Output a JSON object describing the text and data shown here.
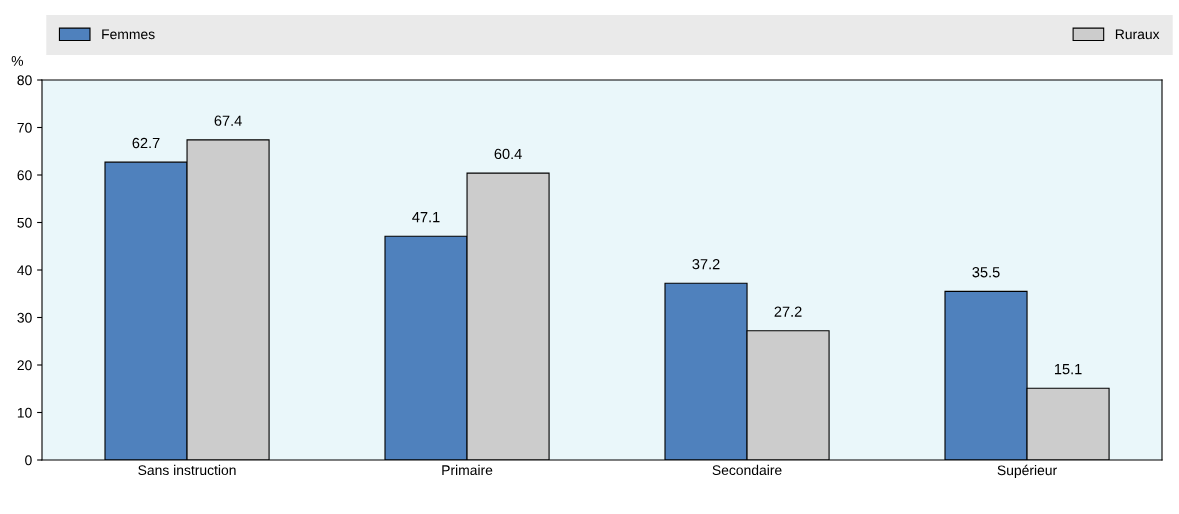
{
  "chart_data": {
    "type": "bar",
    "ylabel": "%",
    "categories": [
      "Sans instruction",
      "Primaire",
      "Secondaire",
      "Supérieur"
    ],
    "series": [
      {
        "name": "Femmes",
        "color": "#4f81bd",
        "values": [
          62.7,
          47.1,
          37.2,
          35.5
        ]
      },
      {
        "name": "Ruraux",
        "color": "#cccccc",
        "values": [
          67.4,
          60.4,
          27.2,
          15.1
        ]
      }
    ],
    "ylim": [
      0,
      80
    ],
    "yticks": [
      0,
      10,
      20,
      30,
      40,
      50,
      60,
      70,
      80
    ],
    "grid": false,
    "legend": "top",
    "data_labels": true
  }
}
